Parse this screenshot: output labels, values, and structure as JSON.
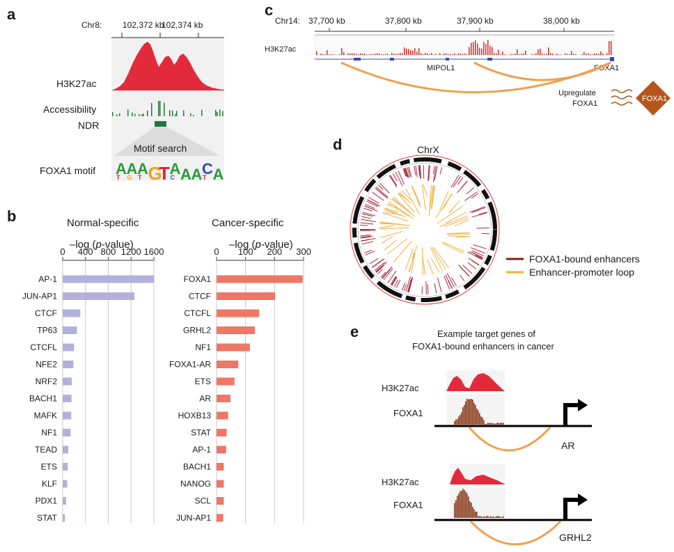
{
  "panels": {
    "a": {
      "label": "a",
      "coord_chr": "Chr8:",
      "coord_ticks": [
        "102,372 kb",
        "102,374 kb"
      ],
      "tracks": [
        "H3K27ac",
        "Accessibility",
        "NDR"
      ],
      "motif_search": "Motif search",
      "motif_label": "FOXA1 motif",
      "motif_top": [
        "A",
        "A",
        "A",
        "G",
        "T",
        "A",
        "A",
        "A",
        "C",
        "A"
      ],
      "motif_bottom": [
        "T",
        "G",
        "T",
        "",
        "",
        "C",
        "",
        "",
        "T",
        ""
      ]
    },
    "b": {
      "label": "b",
      "left_title": "Normal-specific",
      "right_title": "Cancer-specific",
      "axis_label_prefix": "–log (",
      "axis_label_italic": "p",
      "axis_label_suffix": "-value)"
    },
    "c": {
      "label": "c",
      "chr": "Chr14:",
      "ticks": [
        "37,700 kb",
        "37,800 kb",
        "37,900 kb",
        "38,000 kb"
      ],
      "track": "H3K27ac",
      "genes": [
        "MIPOL1",
        "FOXA1"
      ],
      "note_line1": "Upregulate",
      "note_line2": "FOXA1",
      "diamond": "FOXA1"
    },
    "d": {
      "label": "d",
      "chr": "ChrX",
      "legend": [
        "FOXA1-bound enhancers",
        "Enhancer-promoter loop"
      ]
    },
    "e": {
      "label": "e",
      "title_line1": "Example target genes of",
      "title_line2": "FOXA1-bound enhancers in cancer",
      "examples": [
        {
          "track1": "H3K27ac",
          "track2": "FOXA1",
          "gene": "AR"
        },
        {
          "track1": "H3K27ac",
          "track2": "FOXA1",
          "gene": "GRHL2"
        }
      ]
    }
  },
  "chart_data": [
    {
      "type": "bar",
      "orientation": "horizontal",
      "title": "Normal-specific",
      "xlabel": "–log (p-value)",
      "xlim": [
        0,
        1600
      ],
      "xticks": [
        0,
        400,
        800,
        1200,
        1600
      ],
      "categories": [
        "AP-1",
        "JUN-AP1",
        "CTCF",
        "TP63",
        "CTCFL",
        "NFE2",
        "NRF2",
        "BACH1",
        "MAFK",
        "NF1",
        "TEAD",
        "ETS",
        "KLF",
        "PDX1",
        "STAT"
      ],
      "values": [
        1600,
        1260,
        310,
        250,
        200,
        190,
        160,
        155,
        150,
        140,
        100,
        90,
        80,
        60,
        40
      ],
      "color": "#b3b1dc",
      "grid": true
    },
    {
      "type": "bar",
      "orientation": "horizontal",
      "title": "Cancer-specific",
      "xlabel": "–log (p-value)",
      "xlim": [
        0,
        300
      ],
      "xticks": [
        0,
        100,
        200,
        300
      ],
      "categories": [
        "FOXA1",
        "CTCF",
        "CTCFL",
        "GRHL2",
        "NF1",
        "FOXA1-AR",
        "ETS",
        "AR",
        "HOXB13",
        "STAT",
        "AP-1",
        "BACH1",
        "NANOG",
        "SCL",
        "JUN-AP1"
      ],
      "values": [
        297,
        202,
        147,
        132,
        115,
        75,
        62,
        48,
        40,
        35,
        33,
        25,
        25,
        25,
        23
      ],
      "color": "#ee7766",
      "grid": true
    }
  ]
}
